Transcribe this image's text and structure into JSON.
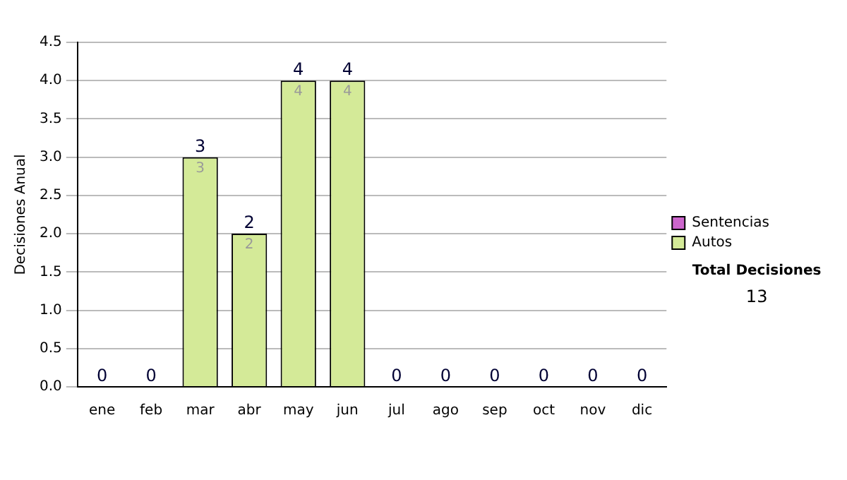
{
  "chart_data": {
    "type": "bar",
    "ylabel": "Decisiones Anual",
    "categories": [
      "ene",
      "feb",
      "mar",
      "abr",
      "may",
      "jun",
      "jul",
      "ago",
      "sep",
      "oct",
      "nov",
      "dic"
    ],
    "series": [
      {
        "name": "Sentencias",
        "color": "#cc66cc",
        "values": [
          0,
          0,
          0,
          0,
          0,
          0,
          0,
          0,
          0,
          0,
          0,
          0
        ]
      },
      {
        "name": "Autos",
        "color": "#d4ea98",
        "values": [
          0,
          0,
          3,
          2,
          4,
          4,
          0,
          0,
          0,
          0,
          0,
          0
        ],
        "value_labels": [
          null,
          null,
          "3",
          "2",
          "4",
          "4",
          null,
          null,
          null,
          null,
          null,
          null
        ]
      }
    ],
    "stacked": true,
    "totals": [
      "0",
      "0",
      "3",
      "2",
      "4",
      "4",
      "0",
      "0",
      "0",
      "0",
      "0",
      "0"
    ],
    "ylim": [
      0,
      4.5
    ],
    "yticks": [
      {
        "value": 0,
        "label": "0.0"
      },
      {
        "value": 0.5,
        "label": "0.5"
      },
      {
        "value": 1,
        "label": "1.0"
      },
      {
        "value": 1.5,
        "label": "1.5"
      },
      {
        "value": 2,
        "label": "2.0"
      },
      {
        "value": 2.5,
        "label": "2.5"
      },
      {
        "value": 3,
        "label": "3.0"
      },
      {
        "value": 3.5,
        "label": "3.5"
      },
      {
        "value": 4,
        "label": "4.0"
      },
      {
        "value": 4.5,
        "label": "4.5"
      }
    ],
    "grid": "y",
    "legend": "right",
    "annotations": [
      "Total Decisiones",
      "13"
    ]
  }
}
